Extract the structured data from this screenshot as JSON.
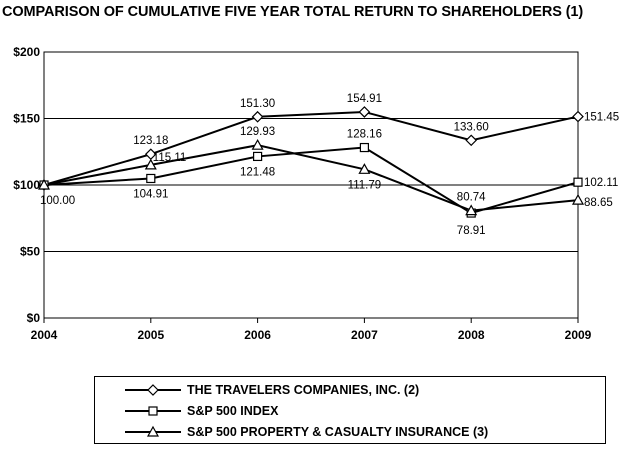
{
  "title": "COMPARISON OF CUMULATIVE FIVE YEAR TOTAL RETURN TO SHAREHOLDERS (1)",
  "chart_data": {
    "type": "line",
    "categories": [
      "2004",
      "2005",
      "2006",
      "2007",
      "2008",
      "2009"
    ],
    "y_ticks": [
      "$0",
      "$50",
      "$100",
      "$150",
      "$200"
    ],
    "ylim": [
      0,
      200
    ],
    "grid": true,
    "legend_position": "bottom",
    "series": [
      {
        "name": "THE TRAVELERS COMPANIES, INC. (2)",
        "marker": "diamond",
        "values": [
          100.0,
          123.18,
          151.3,
          154.91,
          133.6,
          151.45
        ],
        "labels": [
          "",
          "123.18",
          "151.30",
          "154.91",
          "133.60",
          "151.45"
        ]
      },
      {
        "name": "S&P 500 INDEX",
        "marker": "square",
        "values": [
          100.0,
          104.91,
          121.48,
          128.16,
          78.91,
          102.11
        ],
        "labels": [
          "100.00",
          "104.91",
          "121.48",
          "128.16",
          "78.91",
          "102.11"
        ]
      },
      {
        "name": "S&P 500 PROPERTY & CASUALTY INSURANCE (3)",
        "marker": "triangle",
        "values": [
          100.0,
          115.11,
          129.93,
          111.79,
          80.74,
          88.65
        ],
        "labels": [
          "",
          "115.11",
          "129.93",
          "111.79",
          "80.74",
          "88.65"
        ]
      }
    ]
  }
}
